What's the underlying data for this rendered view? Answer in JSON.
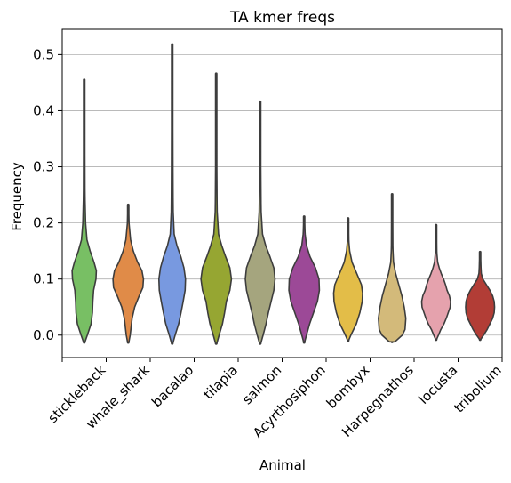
{
  "chart_data": {
    "type": "violin",
    "title": "TA kmer freqs",
    "xlabel": "Animal",
    "ylabel": "Frequency",
    "ylim": [
      -0.04,
      0.545
    ],
    "yticks": [
      0.0,
      0.1,
      0.2,
      0.3,
      0.4,
      0.5
    ],
    "ytick_labels": [
      "0.0",
      "0.1",
      "0.2",
      "0.3",
      "0.4",
      "0.5"
    ],
    "grid": "horizontal",
    "categories": [
      "stickleback",
      "whale_shark",
      "bacalao",
      "tilapia",
      "salmon",
      "Acyrthosiphon",
      "bombyx",
      "Harpegnathos",
      "locusta",
      "tribolium"
    ],
    "violins": [
      {
        "min": -0.013,
        "max": 0.455,
        "median": 0.08,
        "color": "#78bf64",
        "profile": [
          [
            -0.013,
            0.03
          ],
          [
            0.0,
            0.16
          ],
          [
            0.02,
            0.35
          ],
          [
            0.04,
            0.42
          ],
          [
            0.06,
            0.44
          ],
          [
            0.08,
            0.48
          ],
          [
            0.1,
            0.6
          ],
          [
            0.115,
            0.62
          ],
          [
            0.13,
            0.5
          ],
          [
            0.15,
            0.3
          ],
          [
            0.17,
            0.14
          ],
          [
            0.2,
            0.07
          ],
          [
            0.26,
            0.03
          ],
          [
            0.455,
            0.0
          ]
        ]
      },
      {
        "min": -0.013,
        "max": 0.232,
        "median": 0.095,
        "color": "#e08b48",
        "profile": [
          [
            -0.013,
            0.03
          ],
          [
            0.0,
            0.1
          ],
          [
            0.03,
            0.2
          ],
          [
            0.05,
            0.33
          ],
          [
            0.07,
            0.56
          ],
          [
            0.085,
            0.75
          ],
          [
            0.1,
            0.78
          ],
          [
            0.115,
            0.7
          ],
          [
            0.13,
            0.48
          ],
          [
            0.15,
            0.26
          ],
          [
            0.17,
            0.12
          ],
          [
            0.2,
            0.04
          ],
          [
            0.232,
            0.0
          ]
        ]
      },
      {
        "min": -0.015,
        "max": 0.518,
        "median": 0.085,
        "color": "#7899e0",
        "profile": [
          [
            -0.015,
            0.03
          ],
          [
            0.0,
            0.15
          ],
          [
            0.02,
            0.33
          ],
          [
            0.04,
            0.45
          ],
          [
            0.06,
            0.56
          ],
          [
            0.08,
            0.66
          ],
          [
            0.1,
            0.68
          ],
          [
            0.12,
            0.6
          ],
          [
            0.14,
            0.44
          ],
          [
            0.16,
            0.24
          ],
          [
            0.18,
            0.1
          ],
          [
            0.22,
            0.05
          ],
          [
            0.3,
            0.03
          ],
          [
            0.518,
            0.0
          ]
        ]
      },
      {
        "min": -0.015,
        "max": 0.466,
        "median": 0.095,
        "color": "#96a632",
        "profile": [
          [
            -0.015,
            0.03
          ],
          [
            0.0,
            0.15
          ],
          [
            0.02,
            0.32
          ],
          [
            0.04,
            0.43
          ],
          [
            0.06,
            0.52
          ],
          [
            0.08,
            0.7
          ],
          [
            0.1,
            0.78
          ],
          [
            0.12,
            0.7
          ],
          [
            0.14,
            0.48
          ],
          [
            0.16,
            0.28
          ],
          [
            0.18,
            0.12
          ],
          [
            0.22,
            0.05
          ],
          [
            0.3,
            0.02
          ],
          [
            0.466,
            0.0
          ]
        ]
      },
      {
        "min": -0.015,
        "max": 0.416,
        "median": 0.095,
        "color": "#a5a57e",
        "profile": [
          [
            -0.015,
            0.03
          ],
          [
            0.0,
            0.15
          ],
          [
            0.02,
            0.3
          ],
          [
            0.04,
            0.42
          ],
          [
            0.06,
            0.56
          ],
          [
            0.08,
            0.7
          ],
          [
            0.1,
            0.76
          ],
          [
            0.12,
            0.7
          ],
          [
            0.14,
            0.5
          ],
          [
            0.16,
            0.28
          ],
          [
            0.18,
            0.12
          ],
          [
            0.22,
            0.05
          ],
          [
            0.3,
            0.02
          ],
          [
            0.416,
            0.0
          ]
        ]
      },
      {
        "min": -0.013,
        "max": 0.211,
        "median": 0.085,
        "color": "#9c4997",
        "profile": [
          [
            -0.013,
            0.02
          ],
          [
            0.0,
            0.12
          ],
          [
            0.02,
            0.28
          ],
          [
            0.04,
            0.48
          ],
          [
            0.06,
            0.68
          ],
          [
            0.08,
            0.78
          ],
          [
            0.1,
            0.76
          ],
          [
            0.12,
            0.58
          ],
          [
            0.14,
            0.3
          ],
          [
            0.16,
            0.12
          ],
          [
            0.18,
            0.05
          ],
          [
            0.211,
            0.0
          ]
        ]
      },
      {
        "min": -0.01,
        "max": 0.208,
        "median": 0.07,
        "color": "#e3bd48",
        "profile": [
          [
            -0.01,
            0.02
          ],
          [
            0.0,
            0.14
          ],
          [
            0.02,
            0.42
          ],
          [
            0.04,
            0.6
          ],
          [
            0.06,
            0.72
          ],
          [
            0.075,
            0.74
          ],
          [
            0.09,
            0.68
          ],
          [
            0.11,
            0.44
          ],
          [
            0.13,
            0.2
          ],
          [
            0.15,
            0.08
          ],
          [
            0.17,
            0.03
          ],
          [
            0.208,
            0.0
          ]
        ]
      },
      {
        "min": -0.012,
        "max": 0.251,
        "median": 0.05,
        "color": "#d3ba7a",
        "profile": [
          [
            -0.012,
            0.14
          ],
          [
            0.0,
            0.52
          ],
          [
            0.01,
            0.66
          ],
          [
            0.03,
            0.7
          ],
          [
            0.05,
            0.62
          ],
          [
            0.07,
            0.5
          ],
          [
            0.09,
            0.34
          ],
          [
            0.11,
            0.18
          ],
          [
            0.13,
            0.07
          ],
          [
            0.16,
            0.03
          ],
          [
            0.2,
            0.02
          ],
          [
            0.251,
            0.0
          ]
        ]
      },
      {
        "min": -0.008,
        "max": 0.196,
        "median": 0.06,
        "color": "#e5a2ad",
        "profile": [
          [
            -0.008,
            0.02
          ],
          [
            0.0,
            0.12
          ],
          [
            0.01,
            0.24
          ],
          [
            0.02,
            0.4
          ],
          [
            0.03,
            0.52
          ],
          [
            0.04,
            0.62
          ],
          [
            0.05,
            0.72
          ],
          [
            0.06,
            0.74
          ],
          [
            0.07,
            0.68
          ],
          [
            0.08,
            0.56
          ],
          [
            0.09,
            0.48
          ],
          [
            0.1,
            0.38
          ],
          [
            0.11,
            0.26
          ],
          [
            0.12,
            0.16
          ],
          [
            0.13,
            0.08
          ],
          [
            0.15,
            0.03
          ],
          [
            0.196,
            0.0
          ]
        ]
      },
      {
        "min": -0.008,
        "max": 0.148,
        "median": 0.05,
        "color": "#b23d36",
        "profile": [
          [
            -0.008,
            0.02
          ],
          [
            0.0,
            0.18
          ],
          [
            0.01,
            0.36
          ],
          [
            0.02,
            0.5
          ],
          [
            0.03,
            0.64
          ],
          [
            0.04,
            0.72
          ],
          [
            0.05,
            0.74
          ],
          [
            0.06,
            0.72
          ],
          [
            0.07,
            0.64
          ],
          [
            0.08,
            0.5
          ],
          [
            0.09,
            0.32
          ],
          [
            0.1,
            0.14
          ],
          [
            0.11,
            0.06
          ],
          [
            0.148,
            0.0
          ]
        ]
      }
    ]
  }
}
